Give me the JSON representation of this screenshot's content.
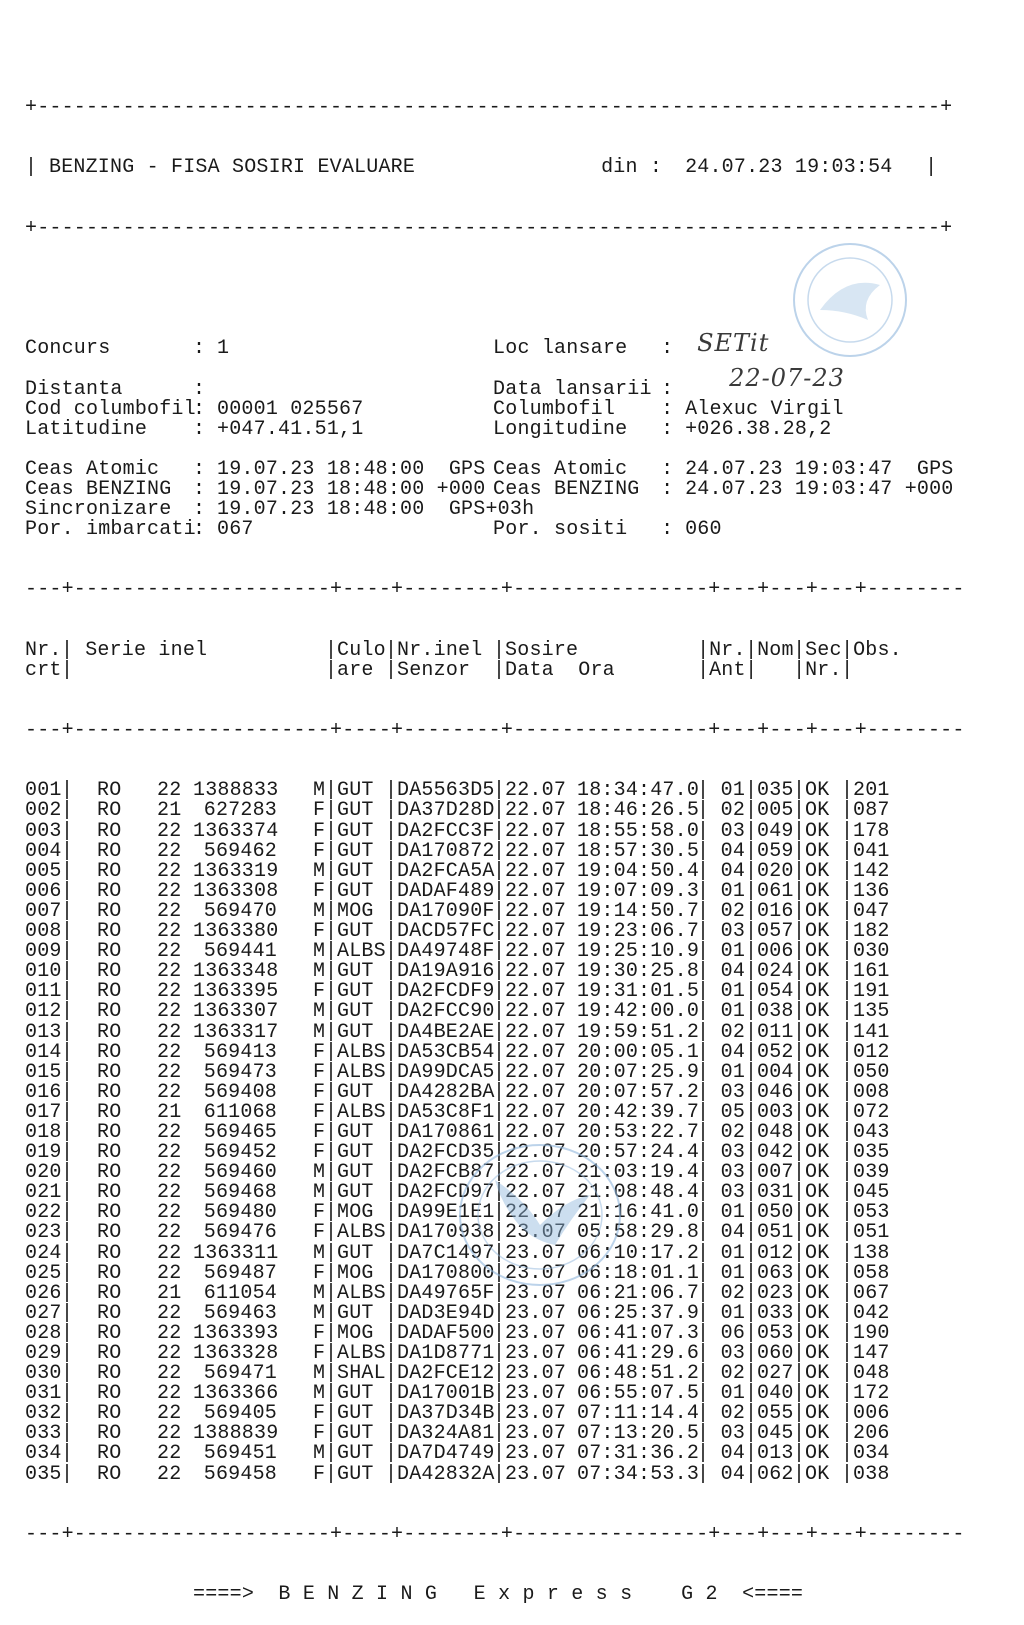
{
  "header": {
    "border": "+--------------------------------------------------------------------------+",
    "title": "BENZING - FISA SOSIRI EVALUARE",
    "din_label": "din :",
    "din_value": "24.07.23 19:03:54"
  },
  "info": {
    "concurs": {
      "label": "Concurs",
      "value": "1"
    },
    "loc_lansare": {
      "label": "Loc lansare",
      "value": "SETit"
    },
    "distanta": {
      "label": "Distanta",
      "value": ""
    },
    "data_lansarii": {
      "label": "Data lansarii",
      "value": "22-07-23"
    },
    "cod_columbofil": {
      "label": "Cod columbofil",
      "value": "00001 025567"
    },
    "columbofil": {
      "label": "Columbofil",
      "value": "Alexuc Virgil"
    },
    "latitudine": {
      "label": "Latitudine",
      "value": "+047.41.51,1"
    },
    "longitudine": {
      "label": "Longitudine",
      "value": "+026.38.28,2"
    },
    "ceas_atomic_start": {
      "label": "Ceas Atomic",
      "value": "19.07.23 18:48:00  GPS"
    },
    "ceas_atomic_end": {
      "label": "Ceas Atomic",
      "value": "24.07.23 19:03:47  GPS"
    },
    "ceas_benzing_start": {
      "label": "Ceas BENZING",
      "value": "19.07.23 18:48:00 +000"
    },
    "ceas_benzing_end": {
      "label": "Ceas BENZING",
      "value": "24.07.23 19:03:47 +000"
    },
    "sincronizare": {
      "label": "Sincronizare",
      "value": "19.07.23 18:48:00  GPS+03h"
    },
    "por_imbarcati": {
      "label": "Por. imbarcati",
      "value": "067"
    },
    "por_sositi": {
      "label": "Por. sositi",
      "value": "060"
    }
  },
  "table": {
    "rule": "---+---------------------+----+--------+----------------+---+---+---+--------",
    "headers_top": {
      "nr": "Nr.",
      "serie": " Serie inel",
      "culoare": "Culo",
      "inel_senzor": "Nr.inel",
      "sosire": "Sosire",
      "nr_ant": "Nr.",
      "nom": "Nom",
      "sec": "Sec",
      "obs": "Obs."
    },
    "headers_bottom": {
      "nr": "crt",
      "serie": "",
      "culoare": "are",
      "inel_senzor": "Senzor",
      "sosire": "Data  Ora",
      "nr_ant": "Ant",
      "nom": "",
      "sec": "Nr.",
      "obs": ""
    },
    "rows": [
      {
        "nr": "001",
        "country": "RO",
        "year": "22",
        "ring": "1388833",
        "sex": "M",
        "color": "GUT",
        "sensor": "DA5563D5",
        "date": "22.07",
        "time": "18:34:47.0",
        "ant": "01",
        "nom": "035",
        "sec": "OK",
        "obs": "201"
      },
      {
        "nr": "002",
        "country": "RO",
        "year": "21",
        "ring": "627283",
        "sex": "F",
        "color": "GUT",
        "sensor": "DA37D28D",
        "date": "22.07",
        "time": "18:46:26.5",
        "ant": "02",
        "nom": "005",
        "sec": "OK",
        "obs": "087"
      },
      {
        "nr": "003",
        "country": "RO",
        "year": "22",
        "ring": "1363374",
        "sex": "F",
        "color": "GUT",
        "sensor": "DA2FCC3F",
        "date": "22.07",
        "time": "18:55:58.0",
        "ant": "03",
        "nom": "049",
        "sec": "OK",
        "obs": "178"
      },
      {
        "nr": "004",
        "country": "RO",
        "year": "22",
        "ring": "569462",
        "sex": "F",
        "color": "GUT",
        "sensor": "DA170872",
        "date": "22.07",
        "time": "18:57:30.5",
        "ant": "04",
        "nom": "059",
        "sec": "OK",
        "obs": "041"
      },
      {
        "nr": "005",
        "country": "RO",
        "year": "22",
        "ring": "1363319",
        "sex": "M",
        "color": "GUT",
        "sensor": "DA2FCA5A",
        "date": "22.07",
        "time": "19:04:50.4",
        "ant": "04",
        "nom": "020",
        "sec": "OK",
        "obs": "142"
      },
      {
        "nr": "006",
        "country": "RO",
        "year": "22",
        "ring": "1363308",
        "sex": "F",
        "color": "GUT",
        "sensor": "DADAF489",
        "date": "22.07",
        "time": "19:07:09.3",
        "ant": "01",
        "nom": "061",
        "sec": "OK",
        "obs": "136"
      },
      {
        "nr": "007",
        "country": "RO",
        "year": "22",
        "ring": "569470",
        "sex": "M",
        "color": "MOG",
        "sensor": "DA17090F",
        "date": "22.07",
        "time": "19:14:50.7",
        "ant": "02",
        "nom": "016",
        "sec": "OK",
        "obs": "047"
      },
      {
        "nr": "008",
        "country": "RO",
        "year": "22",
        "ring": "1363380",
        "sex": "F",
        "color": "GUT",
        "sensor": "DACD57FC",
        "date": "22.07",
        "time": "19:23:06.7",
        "ant": "03",
        "nom": "057",
        "sec": "OK",
        "obs": "182"
      },
      {
        "nr": "009",
        "country": "RO",
        "year": "22",
        "ring": "569441",
        "sex": "M",
        "color": "ALBS",
        "sensor": "DA49748F",
        "date": "22.07",
        "time": "19:25:10.9",
        "ant": "01",
        "nom": "006",
        "sec": "OK",
        "obs": "030"
      },
      {
        "nr": "010",
        "country": "RO",
        "year": "22",
        "ring": "1363348",
        "sex": "M",
        "color": "GUT",
        "sensor": "DA19A916",
        "date": "22.07",
        "time": "19:30:25.8",
        "ant": "04",
        "nom": "024",
        "sec": "OK",
        "obs": "161"
      },
      {
        "nr": "011",
        "country": "RO",
        "year": "22",
        "ring": "1363395",
        "sex": "F",
        "color": "GUT",
        "sensor": "DA2FCDF9",
        "date": "22.07",
        "time": "19:31:01.5",
        "ant": "01",
        "nom": "054",
        "sec": "OK",
        "obs": "191"
      },
      {
        "nr": "012",
        "country": "RO",
        "year": "22",
        "ring": "1363307",
        "sex": "M",
        "color": "GUT",
        "sensor": "DA2FCC90",
        "date": "22.07",
        "time": "19:42:00.0",
        "ant": "01",
        "nom": "038",
        "sec": "OK",
        "obs": "135"
      },
      {
        "nr": "013",
        "country": "RO",
        "year": "22",
        "ring": "1363317",
        "sex": "M",
        "color": "GUT",
        "sensor": "DA4BE2AE",
        "date": "22.07",
        "time": "19:59:51.2",
        "ant": "02",
        "nom": "011",
        "sec": "OK",
        "obs": "141"
      },
      {
        "nr": "014",
        "country": "RO",
        "year": "22",
        "ring": "569413",
        "sex": "F",
        "color": "ALBS",
        "sensor": "DA53CB54",
        "date": "22.07",
        "time": "20:00:05.1",
        "ant": "04",
        "nom": "052",
        "sec": "OK",
        "obs": "012"
      },
      {
        "nr": "015",
        "country": "RO",
        "year": "22",
        "ring": "569473",
        "sex": "F",
        "color": "ALBS",
        "sensor": "DA99DCA5",
        "date": "22.07",
        "time": "20:07:25.9",
        "ant": "01",
        "nom": "004",
        "sec": "OK",
        "obs": "050"
      },
      {
        "nr": "016",
        "country": "RO",
        "year": "22",
        "ring": "569408",
        "sex": "F",
        "color": "GUT",
        "sensor": "DA4282BA",
        "date": "22.07",
        "time": "20:07:57.2",
        "ant": "03",
        "nom": "046",
        "sec": "OK",
        "obs": "008"
      },
      {
        "nr": "017",
        "country": "RO",
        "year": "21",
        "ring": "611068",
        "sex": "F",
        "color": "ALBS",
        "sensor": "DA53C8F1",
        "date": "22.07",
        "time": "20:42:39.7",
        "ant": "05",
        "nom": "003",
        "sec": "OK",
        "obs": "072"
      },
      {
        "nr": "018",
        "country": "RO",
        "year": "22",
        "ring": "569465",
        "sex": "F",
        "color": "GUT",
        "sensor": "DA170861",
        "date": "22.07",
        "time": "20:53:22.7",
        "ant": "02",
        "nom": "048",
        "sec": "OK",
        "obs": "043"
      },
      {
        "nr": "019",
        "country": "RO",
        "year": "22",
        "ring": "569452",
        "sex": "F",
        "color": "GUT",
        "sensor": "DA2FCD35",
        "date": "22.07",
        "time": "20:57:24.4",
        "ant": "03",
        "nom": "042",
        "sec": "OK",
        "obs": "035"
      },
      {
        "nr": "020",
        "country": "RO",
        "year": "22",
        "ring": "569460",
        "sex": "M",
        "color": "GUT",
        "sensor": "DA2FCB87",
        "date": "22.07",
        "time": "21:03:19.4",
        "ant": "03",
        "nom": "007",
        "sec": "OK",
        "obs": "039"
      },
      {
        "nr": "021",
        "country": "RO",
        "year": "22",
        "ring": "569468",
        "sex": "M",
        "color": "GUT",
        "sensor": "DA2FCD97",
        "date": "22.07",
        "time": "21:08:48.4",
        "ant": "03",
        "nom": "031",
        "sec": "OK",
        "obs": "045"
      },
      {
        "nr": "022",
        "country": "RO",
        "year": "22",
        "ring": "569480",
        "sex": "F",
        "color": "MOG",
        "sensor": "DA99E1E1",
        "date": "22.07",
        "time": "21:16:41.0",
        "ant": "01",
        "nom": "050",
        "sec": "OK",
        "obs": "053"
      },
      {
        "nr": "023",
        "country": "RO",
        "year": "22",
        "ring": "569476",
        "sex": "F",
        "color": "ALBS",
        "sensor": "DA170938",
        "date": "23.07",
        "time": "05:58:29.8",
        "ant": "04",
        "nom": "051",
        "sec": "OK",
        "obs": "051"
      },
      {
        "nr": "024",
        "country": "RO",
        "year": "22",
        "ring": "1363311",
        "sex": "M",
        "color": "GUT",
        "sensor": "DA7C1497",
        "date": "23.07",
        "time": "06:10:17.2",
        "ant": "01",
        "nom": "012",
        "sec": "OK",
        "obs": "138"
      },
      {
        "nr": "025",
        "country": "RO",
        "year": "22",
        "ring": "569487",
        "sex": "F",
        "color": "MOG",
        "sensor": "DA170800",
        "date": "23.07",
        "time": "06:18:01.1",
        "ant": "01",
        "nom": "063",
        "sec": "OK",
        "obs": "058"
      },
      {
        "nr": "026",
        "country": "RO",
        "year": "21",
        "ring": "611054",
        "sex": "M",
        "color": "ALBS",
        "sensor": "DA49765F",
        "date": "23.07",
        "time": "06:21:06.7",
        "ant": "02",
        "nom": "023",
        "sec": "OK",
        "obs": "067"
      },
      {
        "nr": "027",
        "country": "RO",
        "year": "22",
        "ring": "569463",
        "sex": "M",
        "color": "GUT",
        "sensor": "DAD3E94D",
        "date": "23.07",
        "time": "06:25:37.9",
        "ant": "01",
        "nom": "033",
        "sec": "OK",
        "obs": "042"
      },
      {
        "nr": "028",
        "country": "RO",
        "year": "22",
        "ring": "1363393",
        "sex": "F",
        "color": "MOG",
        "sensor": "DADAF500",
        "date": "23.07",
        "time": "06:41:07.3",
        "ant": "06",
        "nom": "053",
        "sec": "OK",
        "obs": "190"
      },
      {
        "nr": "029",
        "country": "RO",
        "year": "22",
        "ring": "1363328",
        "sex": "F",
        "color": "ALBS",
        "sensor": "DA1D8771",
        "date": "23.07",
        "time": "06:41:29.6",
        "ant": "03",
        "nom": "060",
        "sec": "OK",
        "obs": "147"
      },
      {
        "nr": "030",
        "country": "RO",
        "year": "22",
        "ring": "569471",
        "sex": "M",
        "color": "SHAL",
        "sensor": "DA2FCE12",
        "date": "23.07",
        "time": "06:48:51.2",
        "ant": "02",
        "nom": "027",
        "sec": "OK",
        "obs": "048"
      },
      {
        "nr": "031",
        "country": "RO",
        "year": "22",
        "ring": "1363366",
        "sex": "M",
        "color": "GUT",
        "sensor": "DA17001B",
        "date": "23.07",
        "time": "06:55:07.5",
        "ant": "01",
        "nom": "040",
        "sec": "OK",
        "obs": "172"
      },
      {
        "nr": "032",
        "country": "RO",
        "year": "22",
        "ring": "569405",
        "sex": "F",
        "color": "GUT",
        "sensor": "DA37D34B",
        "date": "23.07",
        "time": "07:11:14.4",
        "ant": "02",
        "nom": "055",
        "sec": "OK",
        "obs": "006"
      },
      {
        "nr": "033",
        "country": "RO",
        "year": "22",
        "ring": "1388839",
        "sex": "F",
        "color": "GUT",
        "sensor": "DA324A81",
        "date": "23.07",
        "time": "07:13:20.5",
        "ant": "03",
        "nom": "045",
        "sec": "OK",
        "obs": "206"
      },
      {
        "nr": "034",
        "country": "RO",
        "year": "22",
        "ring": "569451",
        "sex": "M",
        "color": "GUT",
        "sensor": "DA7D4749",
        "date": "23.07",
        "time": "07:31:36.2",
        "ant": "04",
        "nom": "013",
        "sec": "OK",
        "obs": "034"
      },
      {
        "nr": "035",
        "country": "RO",
        "year": "22",
        "ring": "569458",
        "sex": "F",
        "color": "GUT",
        "sensor": "DA42832A",
        "date": "23.07",
        "time": "07:34:53.3",
        "ant": "04",
        "nom": "062",
        "sec": "OK",
        "obs": "038"
      }
    ]
  },
  "footer": {
    "text": "====>  B E N Z I N G   E x p r e s s    G 2  <===="
  },
  "colors": {
    "ink": "#1a1a1a",
    "stamp": "#8fb6dc"
  }
}
